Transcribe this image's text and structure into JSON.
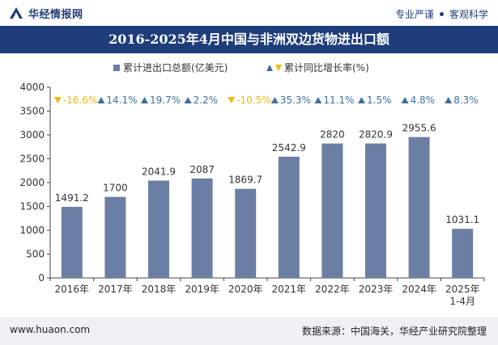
{
  "header": {
    "brand": "华经情报网",
    "tags": [
      "专业严谨",
      "客观科学"
    ]
  },
  "chart_data": {
    "type": "bar",
    "title": "2016-2025年4月中国与非洲双边货物进出口额",
    "categories": [
      "2016年",
      "2017年",
      "2018年",
      "2019年",
      "2020年",
      "2021年",
      "2022年",
      "2023年",
      "2024年",
      "2025年\n1-4月"
    ],
    "series": [
      {
        "name": "累计进出口总额(亿美元)",
        "values": [
          1491.2,
          1700,
          2041.9,
          2087,
          1869.7,
          2542.9,
          2820,
          2820.9,
          2955.6,
          1031.1
        ],
        "labels": [
          "1491.2",
          "1700",
          "2041.9",
          "2087",
          "1869.7",
          "2542.9",
          "2820",
          "2820.9",
          "2955.6",
          "1031.1"
        ],
        "color": "#6b7ea3"
      },
      {
        "name": "累计同比增长率(%)",
        "values": [
          -16.6,
          14.1,
          19.7,
          2.2,
          -10.5,
          35.3,
          11.1,
          1.5,
          4.8,
          8.3
        ],
        "labels": [
          "-16.6%",
          "14.1%",
          "19.7%",
          "2.2%",
          "-10.5%",
          "35.3%",
          "11.1%",
          "1.5%",
          "4.8%",
          "8.3%"
        ]
      }
    ],
    "ylim": [
      0,
      4000
    ],
    "yticks": [
      0,
      500,
      1000,
      1500,
      2000,
      2500,
      3000,
      3500,
      4000
    ],
    "grid": false,
    "legend_position": "top",
    "colors": {
      "up": "#3d6f9e",
      "down": "#f1b80b",
      "bar": "#6b7ea3",
      "text": "#333333"
    }
  },
  "footer": {
    "site": "www.huaon.com",
    "source": "数据来源：中国海关，华经产业研究院整理"
  }
}
